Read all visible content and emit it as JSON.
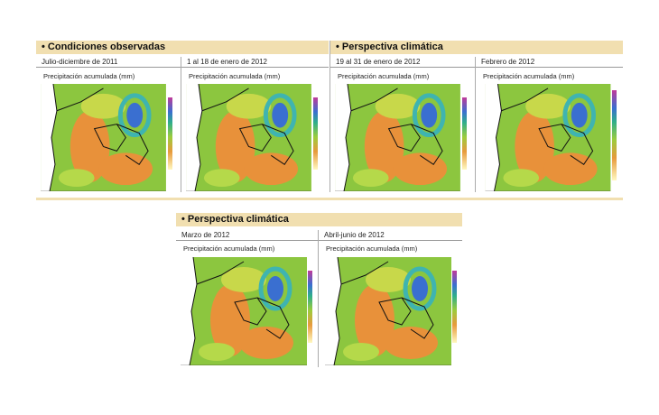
{
  "sections": [
    {
      "title": "Condiciones observadas",
      "panels": [
        {
          "period": "Julio-diciembre de 2011",
          "label": "Precipitación acumulada (mm)"
        },
        {
          "period": "1 al 18 de enero de 2012",
          "label": "Precipitación acumulada (mm)"
        }
      ]
    },
    {
      "title": "Perspectiva climática",
      "panels": [
        {
          "period": "19 al 31 de enero de 2012",
          "label": "Precipitación acumulada (mm)"
        },
        {
          "period": "Febrero de 2012",
          "label": "Precipitación acumulada (mm)"
        }
      ]
    },
    {
      "title": "Perspectiva climática",
      "panels": [
        {
          "period": "Marzo de 2012",
          "label": "Precipitación acumulada (mm)"
        },
        {
          "period": "Abril-junio de 2012",
          "label": "Precipitación acumulada (mm)"
        }
      ]
    }
  ]
}
